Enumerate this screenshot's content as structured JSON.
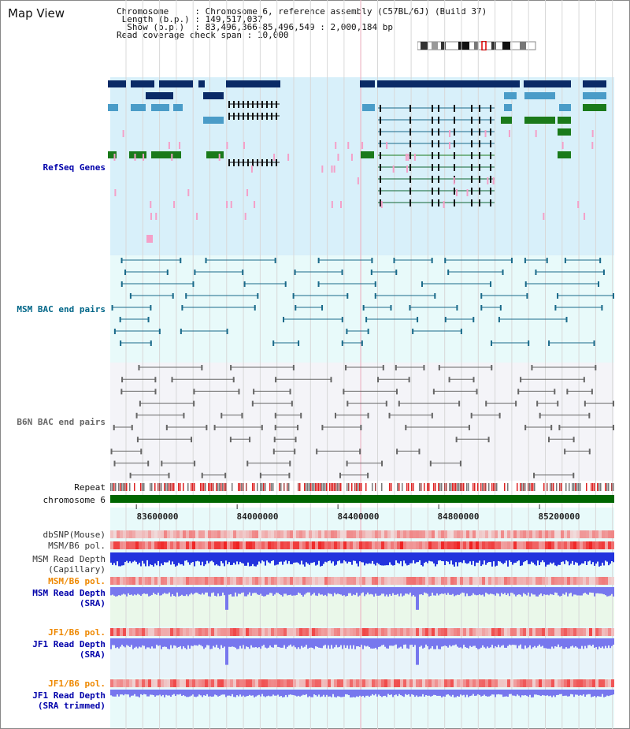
{
  "page": {
    "title": "Map View"
  },
  "info": {
    "rows": [
      {
        "key": "Chromosome    ",
        "value": ": Chromosome 6, reference assembly (C57BL/6J) (Build 37)"
      },
      {
        "key": " Length (b.p.)",
        "value": ": 149,517,037"
      },
      {
        "key": "  Show (b.p.) ",
        "value": ": 83,496,366-85,496,549 : 2,000,184 bp"
      },
      {
        "key": "Read coverage check span",
        "value": ": 10,000"
      }
    ]
  },
  "tracks": {
    "refseq": {
      "label": "RefSeq Genes",
      "color": "#0000aa"
    },
    "msm_bac": {
      "label": "MSM BAC end pairs",
      "color": "#006688"
    },
    "b6n_bac": {
      "label": "B6N BAC end pairs",
      "color": "#666666"
    },
    "repeat": {
      "label": "Repeat"
    },
    "chromosome": {
      "label": "chromosome 6"
    },
    "dbsnp": {
      "label": "dbSNP(Mouse)"
    },
    "msm_pol_1": {
      "label": "MSM/B6 pol."
    },
    "msm_depth_cap": {
      "label": "MSM Read Depth",
      "label2": "(Capillary)"
    },
    "msm_pol_2": {
      "label": "MSM/B6 pol.",
      "color": "#ee8800"
    },
    "msm_depth_sra": {
      "label": "MSM Read Depth",
      "label2": "(SRA)",
      "color": "#0000aa"
    },
    "jf1_pol_1": {
      "label": "JF1/B6 pol.",
      "color": "#ee8800"
    },
    "jf1_depth_sra": {
      "label": "JF1 Read Depth",
      "label2": "(SRA)",
      "color": "#0000aa"
    },
    "jf1_pol_2": {
      "label": "JF1/B6 pol.",
      "color": "#ee8800"
    },
    "jf1_depth_trim": {
      "label": "JF1 Read Depth",
      "label2": "(SRA trimmed)",
      "color": "#0000aa"
    }
  },
  "axis": {
    "ticks": [
      "83600000",
      "84000000",
      "84400000",
      "84800000",
      "85200000"
    ],
    "tick_values": [
      83600000,
      84000000,
      84400000,
      84800000,
      85200000
    ],
    "range": [
      83496366,
      85496549
    ]
  },
  "colors": {
    "refseq_bg": "#d8f0fa",
    "msm_bg": "#e8fafa",
    "b6n_bg": "#f4f4f8",
    "gene_dark": "#0a2a66",
    "gene_mid": "#4a9cc8",
    "gene_green": "#1a7a1a",
    "chromosome_bar": "#006600",
    "depth_blue": "#2233dd",
    "depth_light": "#7777ee",
    "pol_red": "#ee3333"
  }
}
